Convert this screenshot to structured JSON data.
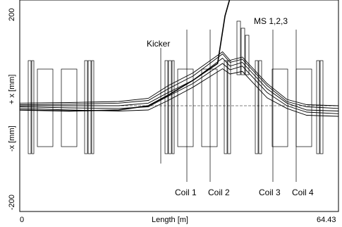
{
  "chart_data": {
    "type": "line",
    "xlabel": "Length [m]",
    "ylabel_top": "+ x [mm]",
    "ylabel_bottom": "-x [mm]",
    "xlim": [
      0,
      64.43
    ],
    "ylim": [
      -200,
      200
    ],
    "x_tick_labels": [
      "0",
      "64.43"
    ],
    "y_tick_labels": [
      "200",
      "-200"
    ],
    "annotations": [
      "Kicker",
      "Coil 1",
      "Coil 2",
      "MS 1,2,3",
      "Coil 3",
      "Coil 4"
    ],
    "series": [
      {
        "x": [
          0,
          10,
          20,
          26,
          30,
          35,
          41,
          42.5,
          45,
          50,
          54,
          58,
          64.43
        ],
        "y": [
          -5,
          -8,
          -10,
          -8,
          10,
          35,
          70,
          60,
          65,
          15,
          -5,
          -18,
          -20
        ]
      },
      {
        "x": [
          0,
          10,
          20,
          26,
          30,
          35,
          41,
          42.5,
          45,
          50,
          54,
          58,
          64.43
        ],
        "y": [
          -2,
          -4,
          -5,
          -2,
          18,
          42,
          80,
          68,
          75,
          25,
          0,
          -12,
          -15
        ]
      },
      {
        "x": [
          0,
          10,
          20,
          26,
          30,
          35,
          41,
          42.5,
          45,
          50,
          54,
          58,
          64.43
        ],
        "y": [
          0,
          0,
          0,
          5,
          25,
          48,
          90,
          75,
          82,
          32,
          5,
          -8,
          -10
        ]
      },
      {
        "x": [
          0,
          10,
          20,
          26,
          30,
          35,
          41,
          42.5,
          45,
          50,
          54,
          58,
          64.43
        ],
        "y": [
          2,
          3,
          5,
          10,
          32,
          56,
          98,
          82,
          88,
          38,
          8,
          -2,
          -5
        ]
      },
      {
        "x": [
          0,
          10,
          20,
          26,
          30,
          35,
          41,
          42.5,
          45,
          50,
          54,
          58,
          64.43
        ],
        "y": [
          5,
          6,
          8,
          14,
          38,
          62,
          102,
          86,
          92,
          42,
          12,
          2,
          0
        ]
      },
      {
        "x": [
          0,
          10,
          20,
          26,
          30,
          35,
          40,
          41.5,
          43
        ],
        "y": [
          -8,
          -10,
          -8,
          0,
          20,
          48,
          80,
          170,
          220
        ]
      }
    ],
    "reference_y": 0,
    "grid": false
  }
}
